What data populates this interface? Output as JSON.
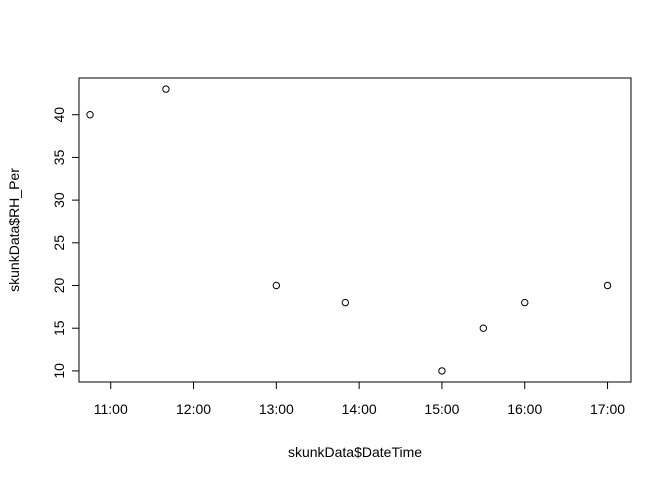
{
  "chart_data": {
    "type": "scatter",
    "title": "",
    "xlabel": "skunkData$DateTime",
    "ylabel": "skunkData$RH_Per",
    "x_tick_labels": [
      "11:00",
      "12:00",
      "13:00",
      "14:00",
      "15:00",
      "16:00",
      "17:00"
    ],
    "x_tick_values": [
      "11:00",
      "12:00",
      "13:00",
      "14:00",
      "15:00",
      "16:00",
      "17:00"
    ],
    "y_tick_labels": [
      "10",
      "15",
      "20",
      "25",
      "30",
      "35",
      "40"
    ],
    "y_ticks": [
      10,
      15,
      20,
      25,
      30,
      35,
      40
    ],
    "xlim": [
      "10:37",
      "17:17"
    ],
    "ylim": [
      8.7,
      44.3
    ],
    "grid": false,
    "legend": "none",
    "point_style": "open-circle",
    "x": [
      "10:45",
      "11:40",
      "13:00",
      "13:50",
      "15:00",
      "15:30",
      "16:00",
      "17:00"
    ],
    "y": [
      40,
      43,
      20,
      18,
      10,
      15,
      18,
      20
    ]
  }
}
